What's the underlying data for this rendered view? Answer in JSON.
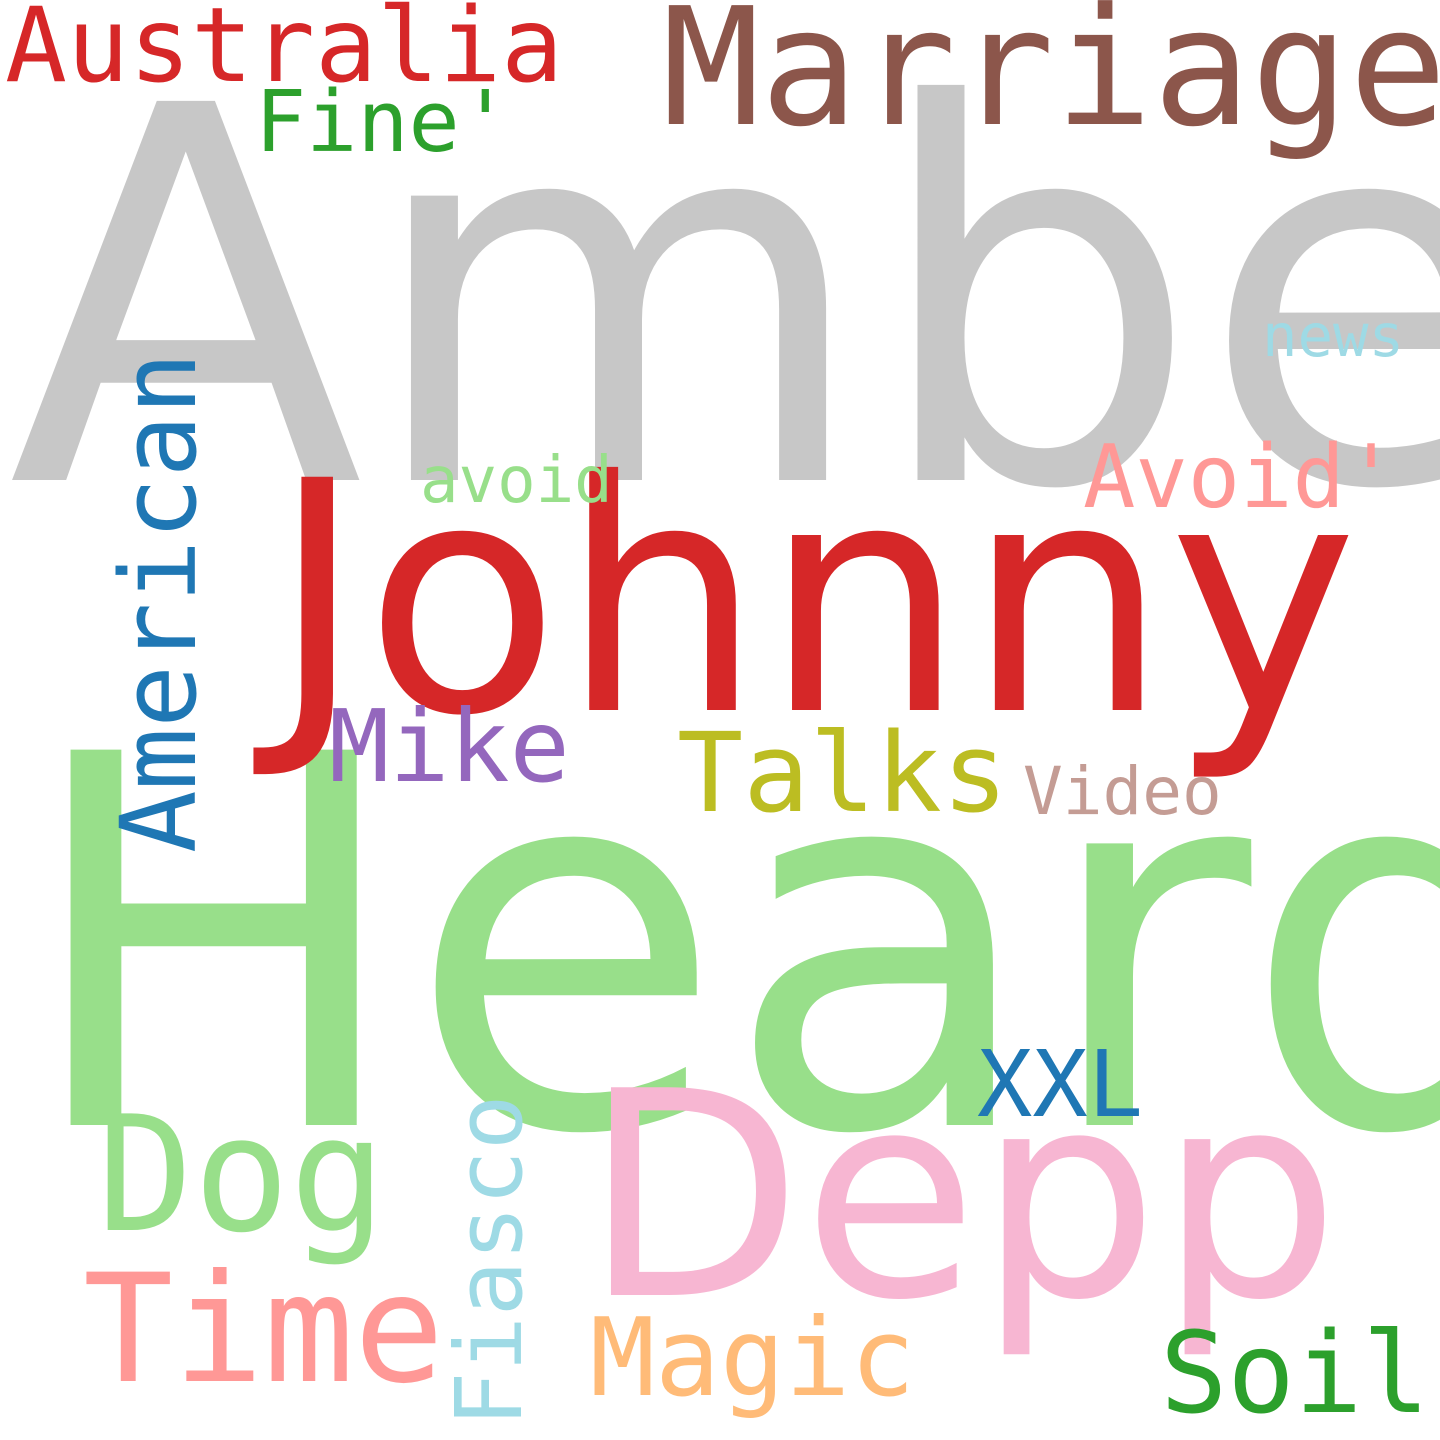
{
  "words": [
    {
      "text": "Amber",
      "color": "#c7c7c7"
    },
    {
      "text": "Heard",
      "color": "#98df8a"
    },
    {
      "text": "Johnny",
      "color": "#d62728"
    },
    {
      "text": "Depp",
      "color": "#f7b6d2"
    },
    {
      "text": "Marriage",
      "color": "#8c564b"
    },
    {
      "text": "Australia",
      "color": "#d62728"
    },
    {
      "text": "Fine'",
      "color": "#2ca02c"
    },
    {
      "text": "American",
      "color": "#1f77b4"
    },
    {
      "text": "news",
      "color": "#9edae5"
    },
    {
      "text": "avoid",
      "color": "#98df8a"
    },
    {
      "text": "Avoid'",
      "color": "#ff9896"
    },
    {
      "text": "Mike",
      "color": "#9467bd"
    },
    {
      "text": "Talks",
      "color": "#bcbd22"
    },
    {
      "text": "Video",
      "color": "#c49c94"
    },
    {
      "text": "XXL",
      "color": "#1f77b4"
    },
    {
      "text": "Dog",
      "color": "#98df8a"
    },
    {
      "text": "Fiasco",
      "color": "#9edae5"
    },
    {
      "text": "Time",
      "color": "#ff9896"
    },
    {
      "text": "Magic",
      "color": "#ffbb78"
    },
    {
      "text": "Soil",
      "color": "#2ca02c"
    }
  ]
}
